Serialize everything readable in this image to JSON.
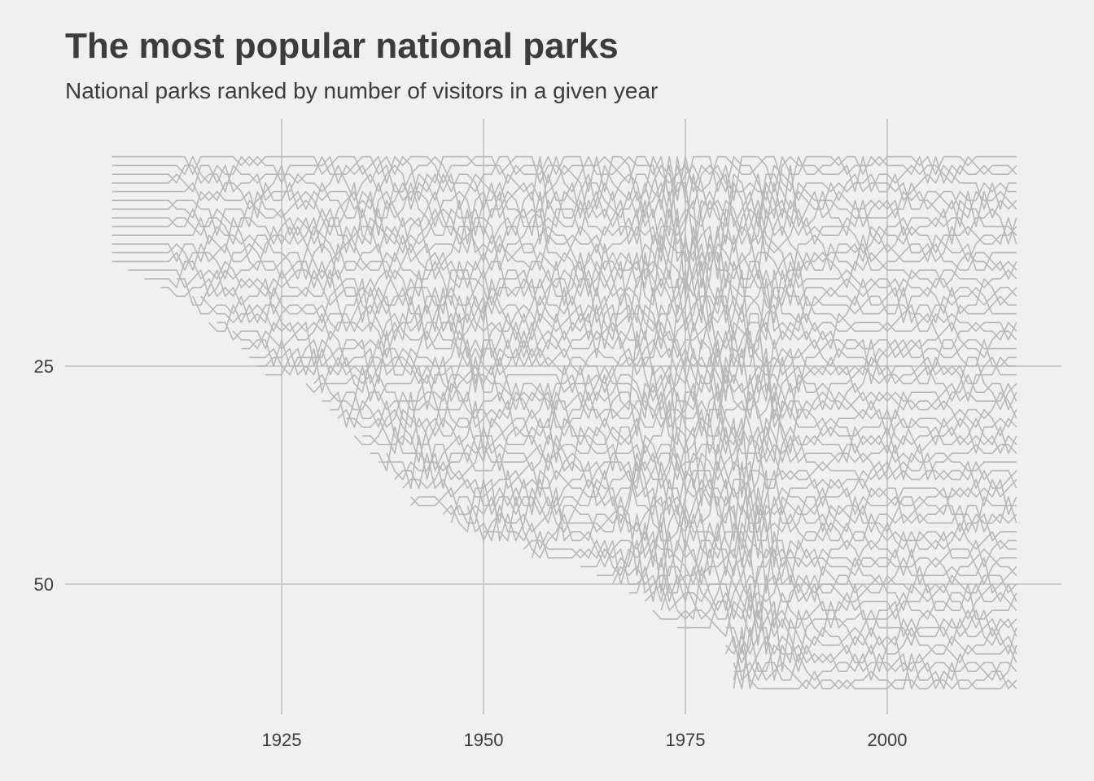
{
  "title": "The most popular national parks",
  "subtitle": "National parks ranked by number of visitors in a given year",
  "colors": {
    "background": "#f0f0f0",
    "grid": "#cbcbcb",
    "line": "#b8b8b8",
    "text": "#3c3c3c"
  },
  "chart_data": {
    "type": "line",
    "title": "The most popular national parks",
    "subtitle": "National parks ranked by number of visitors in a given year",
    "xlabel": "",
    "ylabel": "",
    "x_ticks": [
      1925,
      1950,
      1975,
      2000
    ],
    "y_ticks": [
      25,
      50
    ],
    "xlim": [
      1904,
      2016
    ],
    "ylim": [
      1,
      62
    ],
    "y_reversed": true,
    "grid": true,
    "legend": "none",
    "series_note_visible": false,
    "entry_years": [
      1904,
      1904,
      1904,
      1904,
      1904,
      1904,
      1904,
      1904,
      1904,
      1904,
      1904,
      1904,
      1904,
      1906,
      1908,
      1910,
      1912,
      1914,
      1915,
      1916,
      1917,
      1919,
      1920,
      1921,
      1922,
      1923,
      1928,
      1929,
      1930,
      1931,
      1932,
      1933,
      1934,
      1935,
      1936,
      1937,
      1938,
      1939,
      1940,
      1941,
      1941,
      1945,
      1946,
      1948,
      1950,
      1955,
      1956,
      1962,
      1964,
      1966,
      1968,
      1970,
      1971,
      1972,
      1974,
      1980,
      1980,
      1980,
      1981,
      1981,
      1981,
      1981
    ]
  }
}
